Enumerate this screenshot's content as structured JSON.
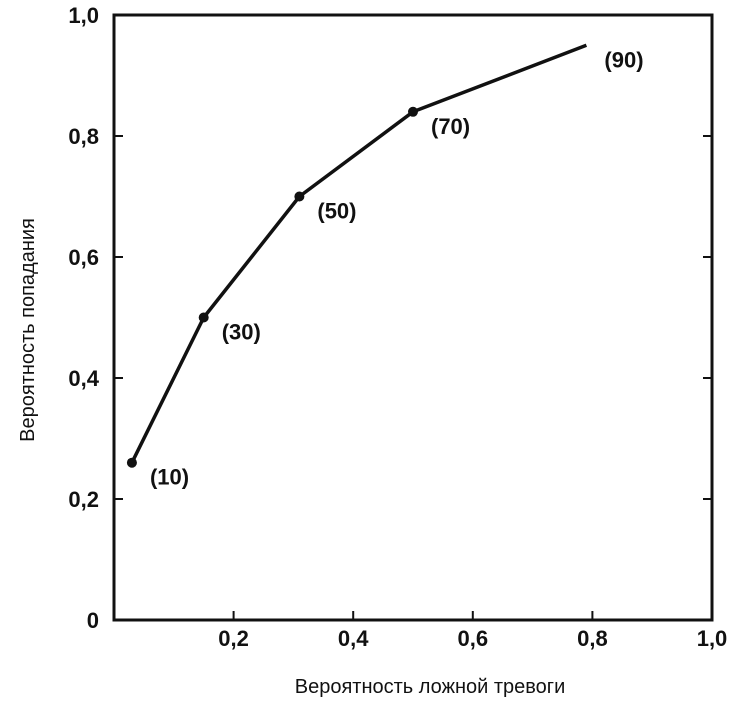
{
  "chart_data": {
    "type": "line",
    "xlabel": "Вероятность ложной тревоги",
    "ylabel": "Вероятность попадания",
    "xlim": [
      0,
      1.0
    ],
    "ylim": [
      0,
      1.0
    ],
    "x_ticks": [
      0.2,
      0.4,
      0.6,
      0.8,
      1.0
    ],
    "x_tick_labels": [
      "0,2",
      "0,4",
      "0,6",
      "0,8",
      "1,0"
    ],
    "y_ticks": [
      0,
      0.2,
      0.4,
      0.6,
      0.8,
      1.0
    ],
    "y_tick_labels": [
      "0",
      "0,2",
      "0,4",
      "0,6",
      "0,8",
      "1,0"
    ],
    "grid": false,
    "series": [
      {
        "points": [
          {
            "x": 0.03,
            "y": 0.26,
            "label": "(10)",
            "marker": true
          },
          {
            "x": 0.15,
            "y": 0.5,
            "label": "(30)",
            "marker": true
          },
          {
            "x": 0.31,
            "y": 0.7,
            "label": "(50)",
            "marker": true
          },
          {
            "x": 0.5,
            "y": 0.84,
            "label": "(70)",
            "marker": true
          },
          {
            "x": 0.79,
            "y": 0.95,
            "label": "(90)",
            "marker": false
          }
        ],
        "color": "#111111"
      }
    ]
  }
}
